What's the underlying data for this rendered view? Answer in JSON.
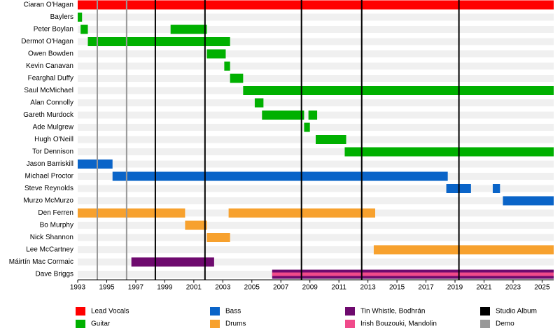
{
  "chart_data": {
    "type": "timeline",
    "categories": [
      "Ciaran O'Hagan",
      "Baylers",
      "Peter Boylan",
      "Dermot O'Hagan",
      "Owen Bowden",
      "Kevin Canavan",
      "Fearghal Duffy",
      "Saul McMichael",
      "Alan Connolly",
      "Gareth Murdock",
      "Ade Mulgrew",
      "Hugh O'Neill",
      "Tor Dennison",
      "Jason Barriskill",
      "Michael Proctor",
      "Steve Reynolds",
      "Murzo McMurzo",
      "Den Ferren",
      "Bo Murphy",
      "Nick Shannon",
      "Lee McCartney",
      "Máirtín Mac Cormaic",
      "Dave Briggs"
    ],
    "series": [
      {
        "name": "Lead Vocals",
        "color": "#ff0000",
        "values": [
          [
            [
              1993,
              2025.8
            ]
          ],
          null,
          null,
          null,
          null,
          null,
          null,
          null,
          null,
          null,
          null,
          null,
          null,
          null,
          null,
          null,
          null,
          null,
          null,
          null,
          null,
          null,
          null
        ]
      },
      {
        "name": "Guitar",
        "color": "#00b000",
        "values": [
          null,
          [
            [
              1993,
              1993.3
            ]
          ],
          [
            [
              1993.2,
              1993.7
            ],
            [
              1999.4,
              2001.9
            ]
          ],
          [
            [
              1993.7,
              2003.5
            ]
          ],
          [
            [
              2001.9,
              2003.2
            ]
          ],
          [
            [
              2003.1,
              2003.5
            ]
          ],
          [
            [
              2003.5,
              2004.4
            ]
          ],
          [
            [
              2004.4,
              2025.8
            ]
          ],
          [
            [
              2005.2,
              2005.8
            ]
          ],
          [
            [
              2005.7,
              2008.6
            ],
            [
              2008.9,
              2009.5
            ]
          ],
          [
            [
              2008.6,
              2009.0
            ]
          ],
          [
            [
              2009.4,
              2011.5
            ]
          ],
          [
            [
              2011.4,
              2025.8
            ]
          ],
          null,
          null,
          null,
          null,
          null,
          null,
          null,
          null,
          null,
          null
        ]
      },
      {
        "name": "Bass",
        "color": "#0a64c8",
        "values": [
          null,
          null,
          null,
          null,
          null,
          null,
          null,
          null,
          null,
          null,
          null,
          null,
          null,
          [
            [
              1993,
              1995.4
            ]
          ],
          [
            [
              1995.4,
              2018.5
            ]
          ],
          [
            [
              2018.4,
              2020.1
            ],
            [
              2021.6,
              2022.1
            ]
          ],
          [
            [
              2022.3,
              2025.8
            ]
          ],
          null,
          null,
          null,
          null,
          null,
          null
        ]
      },
      {
        "name": "Drums",
        "color": "#f7a12e",
        "values": [
          null,
          null,
          null,
          null,
          null,
          null,
          null,
          null,
          null,
          null,
          null,
          null,
          null,
          null,
          null,
          null,
          null,
          [
            [
              1993,
              2000.4
            ],
            [
              2003.4,
              2013.5
            ]
          ],
          [
            [
              2000.4,
              2001.9
            ]
          ],
          [
            [
              2001.9,
              2003.5
            ]
          ],
          [
            [
              2013.4,
              2025.8
            ]
          ],
          null,
          null
        ]
      },
      {
        "name": "Tin Whistle, Bodhrán",
        "color": "#6e0a6e",
        "values": [
          null,
          null,
          null,
          null,
          null,
          null,
          null,
          null,
          null,
          null,
          null,
          null,
          null,
          null,
          null,
          null,
          null,
          null,
          null,
          null,
          null,
          [
            [
              1996.7,
              2002.4
            ]
          ],
          [
            [
              2006.4,
              2025.8
            ]
          ]
        ]
      },
      {
        "name": "Irish Bouzouki, Mandolin",
        "color": "#f04a8a",
        "values": [
          null,
          null,
          null,
          null,
          null,
          null,
          null,
          null,
          null,
          null,
          null,
          null,
          null,
          null,
          null,
          null,
          null,
          null,
          null,
          null,
          null,
          null,
          [
            [
              2006.4,
              2025.8
            ]
          ]
        ]
      }
    ],
    "lines": [
      {
        "name": "Studio Album",
        "color": "#000000",
        "x": [
          1998.35,
          2001.77,
          2008.42,
          2012.57,
          2019.27
        ]
      },
      {
        "name": "Demo",
        "color": "#999999",
        "x": [
          1994.35,
          1996.37
        ]
      }
    ],
    "xlim": [
      1993,
      2025.8
    ],
    "xticks": [
      1993,
      1995,
      1997,
      1999,
      2001,
      2003,
      2005,
      2007,
      2009,
      2011,
      2013,
      2015,
      2017,
      2019,
      2021,
      2023,
      2025
    ]
  }
}
